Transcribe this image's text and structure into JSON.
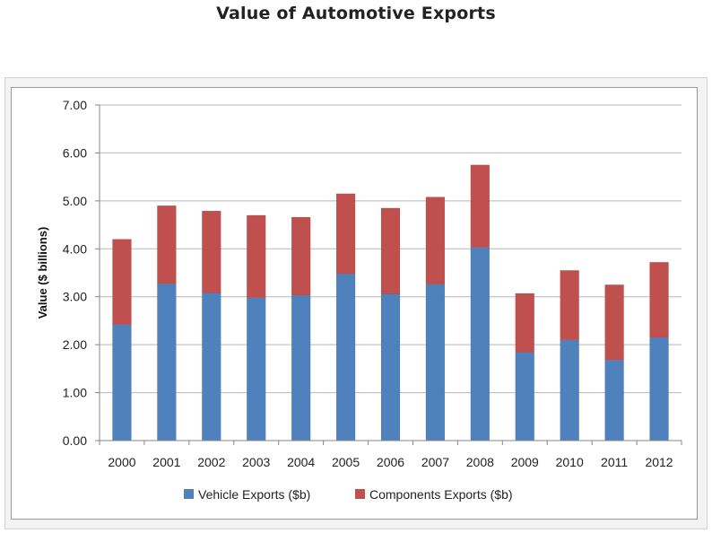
{
  "chart_data": {
    "type": "bar",
    "stacked": true,
    "title": "Value of Automotive Exports",
    "xlabel": "",
    "ylabel": "Value ($ billions)",
    "ylim": [
      0,
      7
    ],
    "ytick_step": 1,
    "ytick_labels": [
      "0.00",
      "1.00",
      "2.00",
      "3.00",
      "4.00",
      "5.00",
      "6.00",
      "7.00"
    ],
    "grid": true,
    "legend_position": "bottom",
    "categories": [
      "2000",
      "2001",
      "2002",
      "2003",
      "2004",
      "2005",
      "2006",
      "2007",
      "2008",
      "2009",
      "2010",
      "2011",
      "2012"
    ],
    "series": [
      {
        "name": "Vehicle Exports ($b)",
        "color": "#4f81bd",
        "values": [
          2.42,
          3.27,
          3.08,
          2.98,
          3.03,
          3.48,
          3.06,
          3.26,
          4.03,
          1.84,
          2.1,
          1.68,
          2.15
        ]
      },
      {
        "name": "Components Exports ($b)",
        "color": "#c0504d",
        "values": [
          1.78,
          1.63,
          1.71,
          1.72,
          1.63,
          1.67,
          1.79,
          1.82,
          1.72,
          1.23,
          1.45,
          1.57,
          1.57
        ]
      }
    ]
  }
}
